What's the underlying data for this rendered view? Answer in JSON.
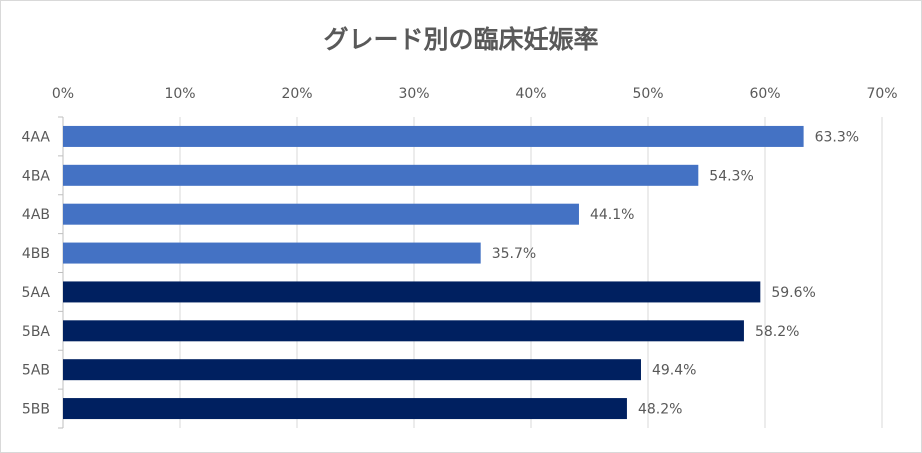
{
  "chart_data": {
    "type": "bar",
    "orientation": "horizontal",
    "title": "グレード別の臨床妊娠率",
    "categories": [
      "4AA",
      "4BA",
      "4AB",
      "4BB",
      "5AA",
      "5BA",
      "5AB",
      "5BB"
    ],
    "values": [
      63.3,
      54.3,
      44.1,
      35.7,
      59.6,
      58.2,
      49.4,
      48.2
    ],
    "data_labels": [
      "63.3%",
      "54.3%",
      "44.1%",
      "35.7%",
      "59.6%",
      "58.2%",
      "49.4%",
      "48.2%"
    ],
    "xlim": [
      0,
      70
    ],
    "x_ticks": [
      "0%",
      "10%",
      "20%",
      "30%",
      "40%",
      "50%",
      "60%",
      "70%"
    ],
    "x_axis_position": "top",
    "grid": true,
    "legend": "none",
    "colors": {
      "group4": "#4472C4",
      "group5": "#002060"
    }
  }
}
